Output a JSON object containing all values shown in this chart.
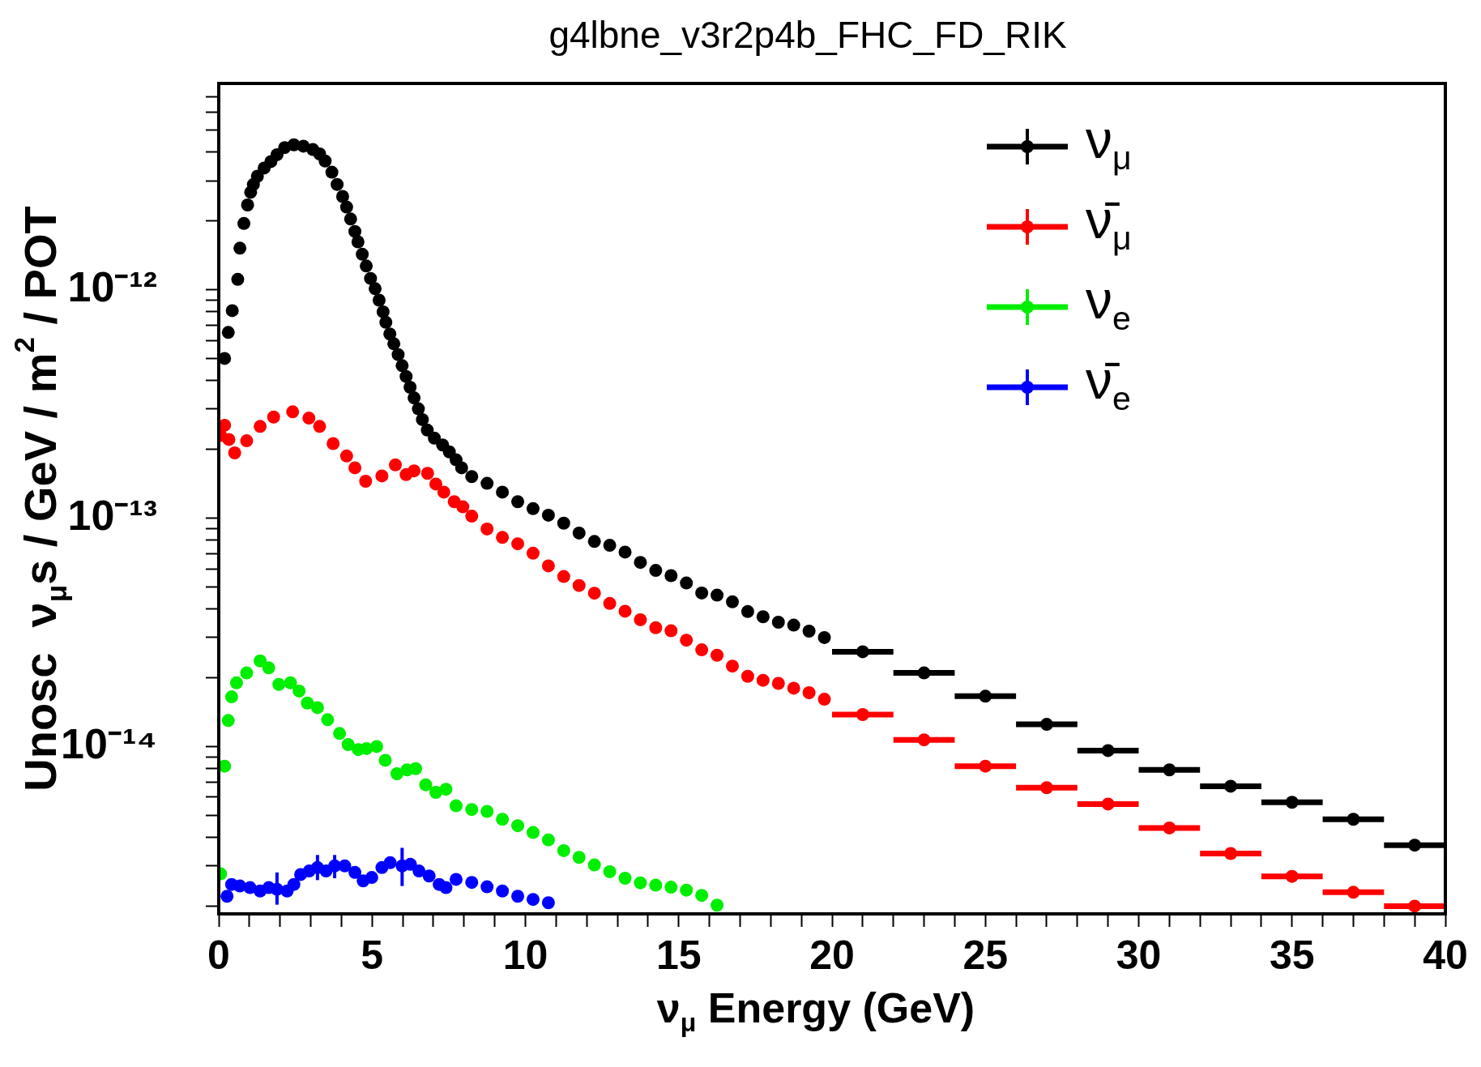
{
  "chart_data": {
    "type": "scatter",
    "title": "g4lbne_v3r2p4b_FHC_FD_RIK",
    "xlabel": "ν$_{μ}$ Energy (GeV)",
    "ylabel": "Unosc  ν$_{μ}$s / GeV / m$^{2}$ / POT",
    "log": "y",
    "marker": "circle",
    "legend": "top right",
    "xlim": [
      0,
      40
    ],
    "ylim": [
      1.85e-15,
      8e-12
    ],
    "xticks": [
      0,
      {
        "value": 1,
        "label": null
      },
      {
        "value": 2,
        "label": null
      },
      {
        "value": 3,
        "label": null
      },
      {
        "value": 4,
        "label": null
      },
      5,
      {
        "value": 6,
        "label": null
      },
      {
        "value": 7,
        "label": null
      },
      {
        "value": 8,
        "label": null
      },
      {
        "value": 9,
        "label": null
      },
      10,
      {
        "value": 11,
        "label": null
      },
      {
        "value": 12,
        "label": null
      },
      {
        "value": 13,
        "label": null
      },
      {
        "value": 14,
        "label": null
      },
      15,
      {
        "value": 16,
        "label": null
      },
      {
        "value": 17,
        "label": null
      },
      {
        "value": 18,
        "label": null
      },
      {
        "value": 19,
        "label": null
      },
      20,
      {
        "value": 21,
        "label": null
      },
      {
        "value": 22,
        "label": null
      },
      {
        "value": 23,
        "label": null
      },
      {
        "value": 24,
        "label": null
      },
      25,
      {
        "value": 26,
        "label": null
      },
      {
        "value": 27,
        "label": null
      },
      {
        "value": 28,
        "label": null
      },
      {
        "value": 29,
        "label": null
      },
      30,
      {
        "value": 31,
        "label": null
      },
      {
        "value": 32,
        "label": null
      },
      {
        "value": 33,
        "label": null
      },
      {
        "value": 34,
        "label": null
      },
      35,
      {
        "value": 36,
        "label": null
      },
      {
        "value": 37,
        "label": null
      },
      {
        "value": 38,
        "label": null
      },
      {
        "value": 39,
        "label": null
      },
      40
    ],
    "yticks": [
      {
        "value": 2e-15,
        "label": null
      },
      {
        "value": 3e-15,
        "label": null
      },
      {
        "value": 4e-15,
        "label": null
      },
      {
        "value": 5e-15,
        "label": null
      },
      {
        "value": 6e-15,
        "label": null
      },
      {
        "value": 7e-15,
        "label": null
      },
      {
        "value": 8e-15,
        "label": null
      },
      {
        "value": 9e-15,
        "label": null
      },
      {
        "value": 1e-14,
        "label": "10⁻¹⁴"
      },
      {
        "value": 2e-14,
        "label": null
      },
      {
        "value": 3e-14,
        "label": null
      },
      {
        "value": 4e-14,
        "label": null
      },
      {
        "value": 5e-14,
        "label": null
      },
      {
        "value": 6e-14,
        "label": null
      },
      {
        "value": 7e-14,
        "label": null
      },
      {
        "value": 8e-14,
        "label": null
      },
      {
        "value": 9e-14,
        "label": null
      },
      {
        "value": 1e-13,
        "label": "10⁻¹³"
      },
      {
        "value": 2e-13,
        "label": null
      },
      {
        "value": 3e-13,
        "label": null
      },
      {
        "value": 4e-13,
        "label": null
      },
      {
        "value": 5e-13,
        "label": null
      },
      {
        "value": 6e-13,
        "label": null
      },
      {
        "value": 7e-13,
        "label": null
      },
      {
        "value": 8e-13,
        "label": null
      },
      {
        "value": 9e-13,
        "label": null
      },
      {
        "value": 1e-12,
        "label": "10⁻¹²"
      },
      {
        "value": 2e-12,
        "label": null
      },
      {
        "value": 3e-12,
        "label": null
      },
      {
        "value": 4e-12,
        "label": null
      },
      {
        "value": 5e-12,
        "label": null
      },
      {
        "value": 6e-12,
        "label": null
      },
      {
        "value": 7e-12,
        "label": null
      }
    ],
    "series": [
      {
        "name": "ν$_{μ}$",
        "color": "#000000",
        "x": [
          0.19,
          0.31,
          0.44,
          0.62,
          0.69,
          0.82,
          0.94,
          1.04,
          1.13,
          1.26,
          1.48,
          1.7,
          1.9,
          2.15,
          2.45,
          2.76,
          3.07,
          3.29,
          3.47,
          3.69,
          3.86,
          4.04,
          4.17,
          4.3,
          4.44,
          4.54,
          4.68,
          4.81,
          4.95,
          5.1,
          5.23,
          5.36,
          5.45,
          5.58,
          5.71,
          5.85,
          5.98,
          6.11,
          6.24,
          6.37,
          6.51,
          6.64,
          6.8,
          7.03,
          7.3,
          7.52,
          7.74,
          7.92,
          8.25,
          8.75,
          9.25,
          9.75,
          10.25,
          10.75,
          11.25,
          11.75,
          12.25,
          12.75,
          13.25,
          13.75,
          14.25,
          14.75,
          15.25,
          15.75,
          16.25,
          16.75,
          17.25,
          17.75,
          18.25,
          18.75,
          19.25,
          19.75,
          21,
          23,
          25,
          27,
          29,
          31,
          33,
          35,
          37,
          39
        ],
        "values": [
          5e-13,
          6.5e-13,
          8.1e-13,
          1.11e-12,
          1.52e-12,
          1.95e-12,
          2.35e-12,
          2.67e-12,
          2.89e-12,
          3.14e-12,
          3.41e-12,
          3.64e-12,
          3.9e-12,
          4.19e-12,
          4.31e-12,
          4.25e-12,
          4.11e-12,
          3.93e-12,
          3.66e-12,
          3.27e-12,
          2.89e-12,
          2.56e-12,
          2.3e-12,
          2.04e-12,
          1.8e-12,
          1.62e-12,
          1.43e-12,
          1.27e-12,
          1.12e-12,
          1.01e-12,
          9e-13,
          8e-13,
          7.2e-13,
          6.4e-13,
          5.8e-13,
          5.2e-13,
          4.65e-13,
          4.17e-13,
          3.74e-13,
          3.36e-13,
          3.01e-13,
          2.7e-13,
          2.43e-13,
          2.24e-13,
          2.09e-13,
          1.95e-13,
          1.8e-13,
          1.66e-13,
          1.52e-13,
          1.42e-13,
          1.3e-13,
          1.18e-13,
          1.1e-13,
          1.03e-13,
          9.5e-14,
          8.6e-14,
          7.9e-14,
          7.6e-14,
          7.1e-14,
          6.4e-14,
          5.9e-14,
          5.6e-14,
          5.2e-14,
          4.7e-14,
          4.6e-14,
          4.3e-14,
          3.9e-14,
          3.7e-14,
          3.5e-14,
          3.4e-14,
          3.2e-14,
          3e-14,
          2.6e-14,
          2.1e-14,
          1.66e-14,
          1.25e-14,
          9.6e-15,
          7.9e-15,
          6.7e-15,
          5.7e-15,
          4.8e-15,
          3.7e-15
        ],
        "xerrors": [
          null,
          null,
          null,
          null,
          null,
          null,
          null,
          null,
          null,
          null,
          null,
          null,
          null,
          null,
          null,
          null,
          null,
          null,
          null,
          null,
          null,
          null,
          null,
          null,
          null,
          null,
          null,
          null,
          null,
          null,
          null,
          null,
          null,
          null,
          null,
          null,
          null,
          null,
          null,
          null,
          null,
          null,
          null,
          null,
          null,
          null,
          null,
          null,
          null,
          null,
          null,
          null,
          null,
          null,
          null,
          null,
          null,
          null,
          null,
          null,
          null,
          null,
          null,
          null,
          null,
          null,
          null,
          null,
          null,
          null,
          null,
          null,
          1,
          1,
          1,
          1,
          1,
          1,
          1,
          1,
          1,
          1
        ]
      },
      {
        "name": "ν̄$_{μ}$",
        "color": "#ff0000",
        "x": [
          0.06,
          0.19,
          0.33,
          0.52,
          0.91,
          1.35,
          1.79,
          2.41,
          2.94,
          3.29,
          3.73,
          4.17,
          4.44,
          4.79,
          5.32,
          5.76,
          6.11,
          6.37,
          6.81,
          7.08,
          7.34,
          7.68,
          7.96,
          8.25,
          8.75,
          9.25,
          9.75,
          10.25,
          10.75,
          11.25,
          11.75,
          12.25,
          12.75,
          13.25,
          13.75,
          14.25,
          14.75,
          15.25,
          15.75,
          16.25,
          16.75,
          17.25,
          17.75,
          18.25,
          18.75,
          19.25,
          19.75,
          21,
          23,
          25,
          27,
          29,
          31,
          33,
          35,
          37,
          39
        ],
        "values": [
          2.3e-13,
          2.55e-13,
          2.21e-13,
          1.93e-13,
          2.18e-13,
          2.52e-13,
          2.77e-13,
          2.92e-13,
          2.74e-13,
          2.52e-13,
          2.12e-13,
          1.87e-13,
          1.66e-13,
          1.45e-13,
          1.53e-13,
          1.71e-13,
          1.55e-13,
          1.61e-13,
          1.57e-13,
          1.41e-13,
          1.3e-13,
          1.18e-13,
          1.12e-13,
          1.02e-13,
          8.96e-14,
          8.23e-14,
          7.72e-14,
          7.02e-14,
          6.18e-14,
          5.55e-14,
          5.07e-14,
          4.69e-14,
          4.23e-14,
          3.91e-14,
          3.59e-14,
          3.31e-14,
          3.21e-14,
          2.92e-14,
          2.65e-14,
          2.51e-14,
          2.25e-14,
          2.03e-14,
          1.95e-14,
          1.89e-14,
          1.8e-14,
          1.72e-14,
          1.61e-14,
          1.38e-14,
          1.07e-14,
          8.2e-15,
          6.6e-15,
          5.6e-15,
          4.4e-15,
          3.4e-15,
          2.7e-15,
          2.3e-15,
          2e-15
        ],
        "xerrors": [
          null,
          null,
          null,
          null,
          null,
          null,
          null,
          null,
          null,
          null,
          null,
          null,
          null,
          null,
          null,
          null,
          null,
          null,
          null,
          null,
          null,
          null,
          null,
          null,
          null,
          null,
          null,
          null,
          null,
          null,
          null,
          null,
          null,
          null,
          null,
          null,
          null,
          null,
          null,
          null,
          null,
          null,
          null,
          null,
          null,
          null,
          null,
          1,
          1,
          1,
          1,
          1,
          1,
          1,
          1,
          1,
          1
        ]
      },
      {
        "name": "ν$_{e}$",
        "color": "#00ee00",
        "x": [
          0.06,
          0.19,
          0.31,
          0.42,
          0.58,
          0.91,
          1.35,
          1.63,
          1.96,
          2.34,
          2.62,
          2.89,
          3.22,
          3.55,
          3.94,
          4.22,
          4.55,
          4.82,
          5.15,
          5.43,
          5.81,
          6.14,
          6.42,
          6.75,
          7.08,
          7.41,
          7.74,
          8.25,
          8.75,
          9.25,
          9.75,
          10.25,
          10.75,
          11.25,
          11.75,
          12.25,
          12.75,
          13.25,
          13.75,
          14.25,
          14.75,
          15.25,
          15.75,
          16.25
        ],
        "values": [
          2.77e-15,
          8.2e-15,
          1.3e-14,
          1.65e-14,
          1.9e-14,
          2.1e-14,
          2.37e-14,
          2.21e-14,
          1.87e-14,
          1.9e-14,
          1.75e-14,
          1.55e-14,
          1.48e-14,
          1.31e-14,
          1.14e-14,
          1.02e-14,
          9.7e-15,
          9.8e-15,
          1e-14,
          8.7e-15,
          7.6e-15,
          7.9e-15,
          8e-15,
          6.8e-15,
          6.3e-15,
          6.5e-15,
          5.5e-15,
          5.3e-15,
          5.2e-15,
          4.8e-15,
          4.5e-15,
          4.2e-15,
          3.9e-15,
          3.5e-15,
          3.27e-15,
          3.03e-15,
          2.83e-15,
          2.65e-15,
          2.53e-15,
          2.47e-15,
          2.42e-15,
          2.35e-15,
          2.23e-15,
          2.02e-15
        ]
      },
      {
        "name": "ν̄$_{e}$",
        "color": "#0000ff",
        "x": [
          0.27,
          0.42,
          0.69,
          1.02,
          1.35,
          1.63,
          1.9,
          2.23,
          2.45,
          2.67,
          2.95,
          3.22,
          3.5,
          3.78,
          4.11,
          4.44,
          4.71,
          4.99,
          5.32,
          5.59,
          5.98,
          6.25,
          6.53,
          6.86,
          7.19,
          7.41,
          7.74,
          8.25,
          8.75,
          9.25,
          9.75,
          10.25,
          10.75
        ],
        "values": [
          2.21e-15,
          2.49e-15,
          2.45e-15,
          2.41e-15,
          2.33e-15,
          2.41e-15,
          2.37e-15,
          2.33e-15,
          2.49e-15,
          2.75e-15,
          2.85e-15,
          2.95e-15,
          2.85e-15,
          3e-15,
          3e-15,
          2.81e-15,
          2.58e-15,
          2.67e-15,
          2.95e-15,
          3.1e-15,
          3e-15,
          3.05e-15,
          2.85e-15,
          2.71e-15,
          2.49e-15,
          2.41e-15,
          2.62e-15,
          2.54e-15,
          2.43e-15,
          2.33e-15,
          2.21e-15,
          2.14e-15,
          2.07e-15
        ],
        "errors": [
          null,
          null,
          null,
          null,
          null,
          null,
          [
            2.03e-15,
            2.81e-15
          ],
          null,
          null,
          null,
          null,
          [
            2.6e-15,
            3.35e-15
          ],
          null,
          [
            2.65e-15,
            3.35e-15
          ],
          null,
          null,
          null,
          null,
          null,
          null,
          [
            2.45e-15,
            3.6e-15
          ],
          null,
          null,
          null,
          null,
          null,
          null,
          null,
          null,
          null,
          null,
          null,
          null
        ]
      }
    ]
  }
}
